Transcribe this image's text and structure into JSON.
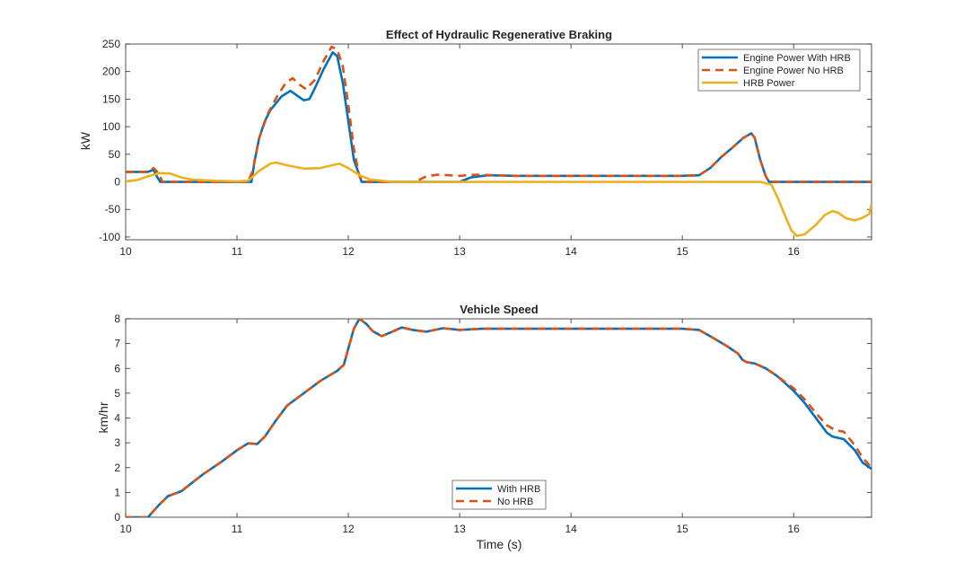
{
  "chart_data": [
    {
      "type": "line",
      "title": "Effect of Hydraulic Regenerative Braking",
      "xlabel": "",
      "ylabel": "kW",
      "xlim": [
        10,
        16.7
      ],
      "ylim": [
        -105,
        250
      ],
      "xticks": [
        10,
        11,
        12,
        13,
        14,
        15,
        16
      ],
      "yticks": [
        -100,
        -50,
        0,
        50,
        100,
        150,
        200,
        250
      ],
      "grid": false,
      "legend_position": "top-right",
      "series": [
        {
          "name": "Engine Power With HRB",
          "color": "#0072BD",
          "dash": "solid",
          "points": [
            [
              10,
              18
            ],
            [
              10.2,
              18
            ],
            [
              10.25,
              22
            ],
            [
              10.28,
              10
            ],
            [
              10.31,
              0
            ],
            [
              11.13,
              0
            ],
            [
              11.16,
              40
            ],
            [
              11.2,
              80
            ],
            [
              11.25,
              110
            ],
            [
              11.3,
              130
            ],
            [
              11.4,
              155
            ],
            [
              11.48,
              165
            ],
            [
              11.55,
              155
            ],
            [
              11.6,
              148
            ],
            [
              11.65,
              150
            ],
            [
              11.7,
              170
            ],
            [
              11.78,
              205
            ],
            [
              11.86,
              235
            ],
            [
              11.9,
              228
            ],
            [
              11.95,
              180
            ],
            [
              12.0,
              110
            ],
            [
              12.05,
              40
            ],
            [
              12.12,
              0
            ],
            [
              12.95,
              0
            ],
            [
              13.0,
              0
            ],
            [
              13.1,
              8
            ],
            [
              13.25,
              12
            ],
            [
              13.5,
              11
            ],
            [
              13.8,
              11
            ],
            [
              14.5,
              11
            ],
            [
              15.0,
              11
            ],
            [
              15.15,
              12
            ],
            [
              15.25,
              25
            ],
            [
              15.35,
              45
            ],
            [
              15.45,
              62
            ],
            [
              15.55,
              80
            ],
            [
              15.62,
              88
            ],
            [
              15.65,
              80
            ],
            [
              15.7,
              40
            ],
            [
              15.75,
              10
            ],
            [
              15.78,
              0
            ],
            [
              16.7,
              0
            ]
          ]
        },
        {
          "name": "Engine Power No HRB",
          "color": "#D95319",
          "dash": "dashed",
          "points": [
            [
              10,
              18
            ],
            [
              10.2,
              18
            ],
            [
              10.25,
              25
            ],
            [
              10.3,
              15
            ],
            [
              10.33,
              0
            ],
            [
              11.1,
              0
            ],
            [
              11.14,
              20
            ],
            [
              11.2,
              80
            ],
            [
              11.28,
              125
            ],
            [
              11.36,
              155
            ],
            [
              11.44,
              180
            ],
            [
              11.5,
              188
            ],
            [
              11.55,
              178
            ],
            [
              11.62,
              168
            ],
            [
              11.7,
              185
            ],
            [
              11.78,
              220
            ],
            [
              11.85,
              245
            ],
            [
              11.9,
              240
            ],
            [
              11.95,
              210
            ],
            [
              12.0,
              140
            ],
            [
              12.05,
              60
            ],
            [
              12.1,
              10
            ],
            [
              12.14,
              0
            ],
            [
              12.6,
              0
            ],
            [
              12.7,
              10
            ],
            [
              12.8,
              13
            ],
            [
              13.0,
              11
            ],
            [
              13.15,
              13
            ],
            [
              13.5,
              11
            ],
            [
              14.0,
              11
            ],
            [
              14.5,
              11
            ],
            [
              15.0,
              11
            ],
            [
              15.15,
              12
            ],
            [
              15.25,
              25
            ],
            [
              15.35,
              45
            ],
            [
              15.45,
              62
            ],
            [
              15.55,
              80
            ],
            [
              15.62,
              88
            ],
            [
              15.65,
              80
            ],
            [
              15.7,
              40
            ],
            [
              15.75,
              10
            ],
            [
              15.78,
              0
            ],
            [
              16.7,
              0
            ]
          ]
        },
        {
          "name": "HRB Power",
          "color": "#EDB120",
          "dash": "solid",
          "points": [
            [
              10,
              1
            ],
            [
              10.1,
              3
            ],
            [
              10.2,
              10
            ],
            [
              10.3,
              16
            ],
            [
              10.4,
              15
            ],
            [
              10.5,
              8
            ],
            [
              10.6,
              4
            ],
            [
              10.8,
              2
            ],
            [
              11.0,
              1
            ],
            [
              11.1,
              2
            ],
            [
              11.2,
              20
            ],
            [
              11.3,
              33
            ],
            [
              11.35,
              35
            ],
            [
              11.45,
              30
            ],
            [
              11.6,
              24
            ],
            [
              11.75,
              25
            ],
            [
              11.85,
              30
            ],
            [
              11.92,
              33
            ],
            [
              12.0,
              25
            ],
            [
              12.1,
              12
            ],
            [
              12.2,
              4
            ],
            [
              12.4,
              0
            ],
            [
              12.6,
              0
            ],
            [
              13.0,
              0
            ],
            [
              14.0,
              0
            ],
            [
              15.0,
              0
            ],
            [
              15.7,
              0
            ],
            [
              15.8,
              -5
            ],
            [
              15.86,
              -30
            ],
            [
              15.92,
              -60
            ],
            [
              15.98,
              -88
            ],
            [
              16.03,
              -98
            ],
            [
              16.1,
              -95
            ],
            [
              16.2,
              -78
            ],
            [
              16.28,
              -60
            ],
            [
              16.35,
              -53
            ],
            [
              16.4,
              -56
            ],
            [
              16.47,
              -66
            ],
            [
              16.55,
              -70
            ],
            [
              16.62,
              -65
            ],
            [
              16.68,
              -58
            ],
            [
              16.7,
              -40
            ]
          ]
        }
      ]
    },
    {
      "type": "line",
      "title": "Vehicle Speed",
      "xlabel": "Time (s)",
      "ylabel": "km/hr",
      "xlim": [
        10,
        16.7
      ],
      "ylim": [
        0,
        8
      ],
      "xticks": [
        10,
        11,
        12,
        13,
        14,
        15,
        16
      ],
      "yticks": [
        0,
        1,
        2,
        3,
        4,
        5,
        6,
        7,
        8
      ],
      "grid": false,
      "legend_position": "bottom-center",
      "series": [
        {
          "name": "With HRB",
          "color": "#0072BD",
          "dash": "solid",
          "points": [
            [
              10,
              0
            ],
            [
              10.2,
              0
            ],
            [
              10.3,
              0.5
            ],
            [
              10.38,
              0.85
            ],
            [
              10.5,
              1.05
            ],
            [
              10.6,
              1.4
            ],
            [
              10.7,
              1.75
            ],
            [
              10.85,
              2.2
            ],
            [
              11.0,
              2.7
            ],
            [
              11.1,
              2.98
            ],
            [
              11.18,
              2.95
            ],
            [
              11.25,
              3.25
            ],
            [
              11.35,
              3.9
            ],
            [
              11.45,
              4.5
            ],
            [
              11.6,
              5.0
            ],
            [
              11.75,
              5.5
            ],
            [
              11.9,
              5.9
            ],
            [
              11.96,
              6.15
            ],
            [
              12.0,
              6.8
            ],
            [
              12.05,
              7.6
            ],
            [
              12.1,
              8.0
            ],
            [
              12.16,
              7.8
            ],
            [
              12.22,
              7.5
            ],
            [
              12.3,
              7.3
            ],
            [
              12.38,
              7.45
            ],
            [
              12.48,
              7.65
            ],
            [
              12.58,
              7.55
            ],
            [
              12.7,
              7.48
            ],
            [
              12.85,
              7.62
            ],
            [
              13.0,
              7.55
            ],
            [
              13.2,
              7.6
            ],
            [
              14.0,
              7.6
            ],
            [
              14.5,
              7.6
            ],
            [
              15.0,
              7.6
            ],
            [
              15.15,
              7.55
            ],
            [
              15.25,
              7.3
            ],
            [
              15.4,
              6.9
            ],
            [
              15.5,
              6.6
            ],
            [
              15.54,
              6.35
            ],
            [
              15.58,
              6.25
            ],
            [
              15.65,
              6.2
            ],
            [
              15.75,
              6.0
            ],
            [
              15.85,
              5.7
            ],
            [
              16.0,
              5.1
            ],
            [
              16.1,
              4.6
            ],
            [
              16.2,
              4.0
            ],
            [
              16.3,
              3.4
            ],
            [
              16.35,
              3.25
            ],
            [
              16.45,
              3.15
            ],
            [
              16.55,
              2.7
            ],
            [
              16.62,
              2.2
            ],
            [
              16.7,
              1.95
            ]
          ]
        },
        {
          "name": "No HRB",
          "color": "#D95319",
          "dash": "dashed",
          "points": [
            [
              10,
              0
            ],
            [
              10.2,
              0
            ],
            [
              10.3,
              0.5
            ],
            [
              10.38,
              0.85
            ],
            [
              10.5,
              1.05
            ],
            [
              10.6,
              1.4
            ],
            [
              10.7,
              1.75
            ],
            [
              10.85,
              2.2
            ],
            [
              11.0,
              2.7
            ],
            [
              11.1,
              2.98
            ],
            [
              11.18,
              2.95
            ],
            [
              11.25,
              3.25
            ],
            [
              11.35,
              3.9
            ],
            [
              11.45,
              4.5
            ],
            [
              11.6,
              5.0
            ],
            [
              11.75,
              5.5
            ],
            [
              11.9,
              5.9
            ],
            [
              11.96,
              6.15
            ],
            [
              12.0,
              6.8
            ],
            [
              12.05,
              7.6
            ],
            [
              12.1,
              8.0
            ],
            [
              12.16,
              7.8
            ],
            [
              12.22,
              7.5
            ],
            [
              12.3,
              7.3
            ],
            [
              12.38,
              7.45
            ],
            [
              12.48,
              7.65
            ],
            [
              12.58,
              7.55
            ],
            [
              12.7,
              7.48
            ],
            [
              12.85,
              7.62
            ],
            [
              13.0,
              7.55
            ],
            [
              13.2,
              7.6
            ],
            [
              14.0,
              7.6
            ],
            [
              14.5,
              7.6
            ],
            [
              15.0,
              7.6
            ],
            [
              15.15,
              7.55
            ],
            [
              15.25,
              7.3
            ],
            [
              15.4,
              6.9
            ],
            [
              15.5,
              6.6
            ],
            [
              15.54,
              6.35
            ],
            [
              15.58,
              6.25
            ],
            [
              15.65,
              6.2
            ],
            [
              15.75,
              6.0
            ],
            [
              15.85,
              5.7
            ],
            [
              16.0,
              5.2
            ],
            [
              16.1,
              4.75
            ],
            [
              16.2,
              4.2
            ],
            [
              16.3,
              3.7
            ],
            [
              16.38,
              3.5
            ],
            [
              16.45,
              3.45
            ],
            [
              16.55,
              2.9
            ],
            [
              16.62,
              2.4
            ],
            [
              16.7,
              2.0
            ]
          ]
        }
      ]
    }
  ]
}
